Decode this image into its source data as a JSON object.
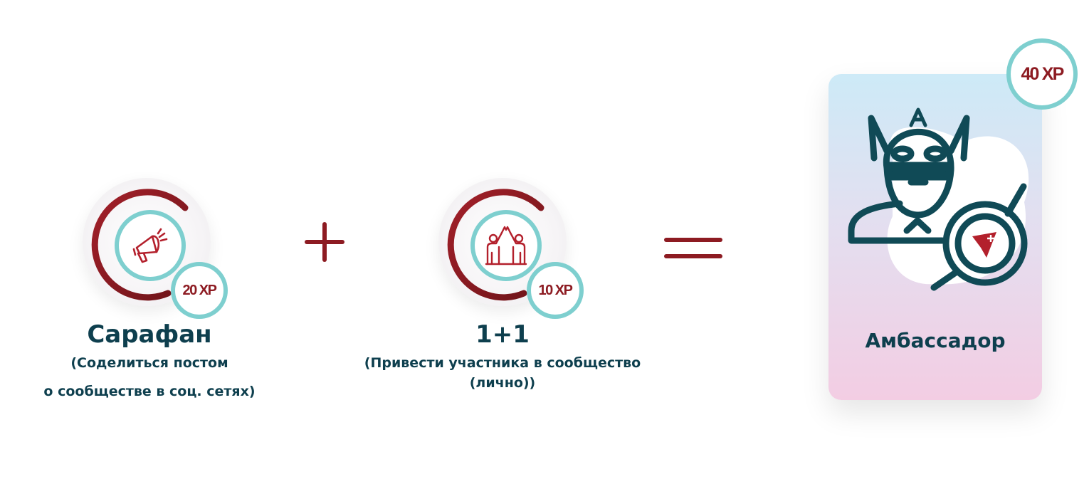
{
  "achievements": [
    {
      "title": "Сарафан",
      "description_line1": "(Соделиться постом",
      "description_line2": "о сообществе в соц. сетях)",
      "xp": "20 XP",
      "icon": "megaphone-icon"
    },
    {
      "title": "1+1",
      "description_line1": "(Привести участника в сообщество",
      "description_line2": "(лично))",
      "xp": "10 XP",
      "icon": "people-high-five-icon"
    }
  ],
  "operators": {
    "plus": "plus-icon",
    "equals": "equals-icon"
  },
  "result": {
    "title": "Амбассадор",
    "xp": "40 XP",
    "icon": "superhero-magnifier-icon"
  },
  "colors": {
    "brand_red": "#8d1b22",
    "teal": "#7ecfcf",
    "text_dark": "#0e3f4e",
    "card_top": "#cdeaf7",
    "card_bottom": "#f3cde3"
  }
}
